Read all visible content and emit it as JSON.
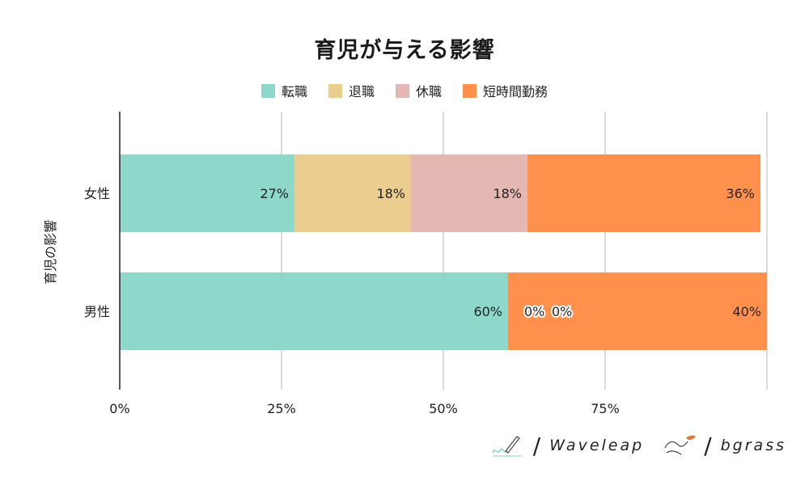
{
  "chart_data": {
    "type": "bar",
    "orientation": "horizontal",
    "stacked": true,
    "title": "育児が与える影響",
    "ylabel": "育児の影響",
    "xlabel": "",
    "categories": [
      "女性",
      "男性"
    ],
    "series": [
      {
        "name": "転職",
        "color": "#8ED8CB",
        "values": [
          27,
          60
        ],
        "labels": [
          "27%",
          "60%"
        ]
      },
      {
        "name": "退職",
        "color": "#EBCD8F",
        "values": [
          18,
          0
        ],
        "labels": [
          "18%",
          "0%"
        ]
      },
      {
        "name": "休職",
        "color": "#E5B7B2",
        "values": [
          18,
          0
        ],
        "labels": [
          "18%",
          "0%"
        ]
      },
      {
        "name": "短時間勤務",
        "color": "#FF914D",
        "values": [
          36,
          40
        ],
        "labels": [
          "36%",
          "40%"
        ]
      }
    ],
    "xlim": [
      0,
      100
    ],
    "xticks": [
      0,
      25,
      50,
      75,
      100
    ],
    "xtick_labels": [
      "0%",
      "25%",
      "50%",
      "75%",
      ""
    ],
    "grid": true,
    "legend_position": "top"
  },
  "logos": {
    "left_text": "Waveleap",
    "right_text": "bgrass",
    "left_icon": "pen-signature-icon",
    "right_icon": "hands-leaf-icon"
  }
}
